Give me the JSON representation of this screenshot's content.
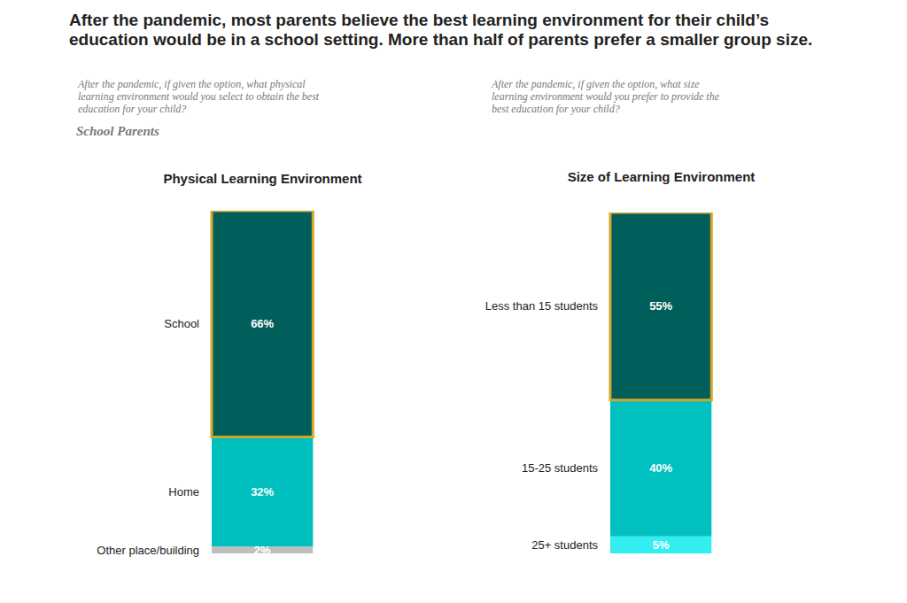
{
  "header": {
    "title": "After the pandemic, most parents believe the best learning environment for their child’s education would be in  a school setting. More than half of parents prefer a smaller group size.",
    "group": "School Parents"
  },
  "chart_data": [
    {
      "type": "bar",
      "title": "Physical Learning Environment",
      "subtitle": "After the pandemic, if given the option, what physical learning environment would you select to obtain the best education for your child?",
      "stacked": true,
      "data_labels": true,
      "tick_labels": false,
      "categories": [
        null
      ],
      "ylim": [
        0,
        100
      ],
      "series": [
        {
          "name": "Other place/building",
          "color": "#bfbfbf",
          "values": [
            2
          ],
          "value_labels": [
            "2%"
          ]
        },
        {
          "name": "Home",
          "color": "#00bfbf",
          "values": [
            32
          ],
          "value_labels": [
            "32%"
          ]
        },
        {
          "name": "School",
          "color": "#005f5a",
          "values": [
            66
          ],
          "value_labels": [
            "66%"
          ]
        }
      ]
    },
    {
      "type": "bar",
      "title": "Size of Learning Environment",
      "subtitle": "After the pandemic, if given the option, what size learning environment would you prefer to provide the best education for your child?",
      "stacked": true,
      "data_labels": true,
      "tick_labels": false,
      "categories": [
        null
      ],
      "ylim": [
        0,
        100
      ],
      "series": [
        {
          "name": "25+ students",
          "color": "#33eef0",
          "values": [
            5
          ],
          "value_labels": [
            "5%"
          ]
        },
        {
          "name": "15-25 students",
          "color": "#00c0c0",
          "values": [
            40
          ],
          "value_labels": [
            "40%"
          ]
        },
        {
          "name": "Less than 15 students",
          "color": "#005f5a",
          "values": [
            55
          ],
          "value_labels": [
            "55%"
          ]
        }
      ]
    }
  ]
}
